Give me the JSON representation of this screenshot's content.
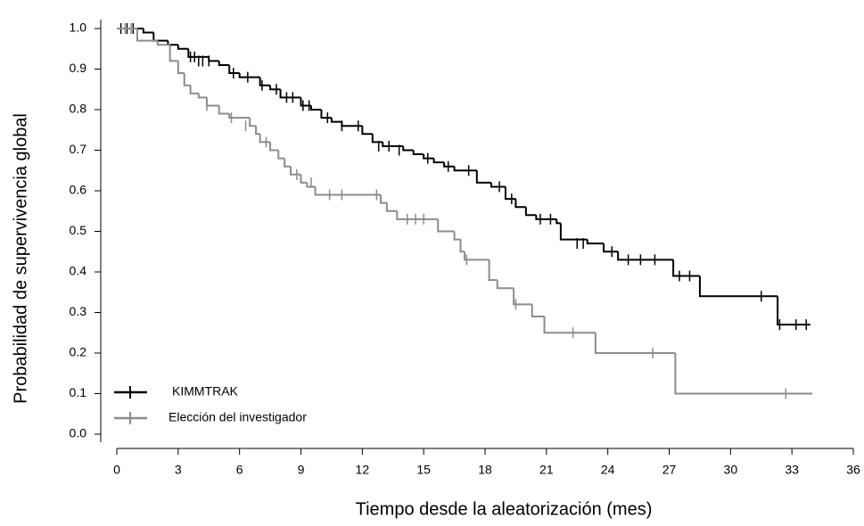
{
  "chart_data": {
    "type": "step",
    "xlabel": "Tiempo desde la aleatorización (mes)",
    "ylabel": "Probabilidad de supervivencia global",
    "xlim": [
      0,
      36
    ],
    "ylim": [
      0,
      1
    ],
    "xticks": [
      0,
      3,
      6,
      9,
      12,
      15,
      18,
      21,
      24,
      27,
      30,
      33,
      36
    ],
    "yticks": [
      {
        "value": 0,
        "label": "0.0"
      },
      0.1,
      0.2,
      0.3,
      0.4,
      0.5,
      0.6,
      0.7,
      0.8,
      0.9,
      {
        "value": 1,
        "label": "1.0"
      }
    ],
    "legend": "lower left",
    "series": [
      {
        "name": "KIMMTRAK",
        "color": "#000000",
        "x": [
          0,
          1.3,
          1.8,
          2.5,
          3,
          3.5,
          4.5,
          5,
          5.5,
          6,
          7,
          7.5,
          8,
          9,
          9.5,
          10,
          10.5,
          11,
          12,
          12.5,
          13,
          14,
          14.5,
          15,
          15.5,
          16,
          16.5,
          17.6,
          18.3,
          19,
          19.5,
          20,
          20.5,
          21.5,
          21.7,
          23,
          23.8,
          24.5,
          27.2,
          28.5,
          32.3,
          33.9
        ],
        "values": [
          1.0,
          0.99,
          0.97,
          0.96,
          0.95,
          0.93,
          0.92,
          0.91,
          0.89,
          0.88,
          0.86,
          0.85,
          0.83,
          0.81,
          0.8,
          0.78,
          0.77,
          0.76,
          0.74,
          0.72,
          0.71,
          0.7,
          0.69,
          0.68,
          0.67,
          0.66,
          0.65,
          0.62,
          0.61,
          0.58,
          0.56,
          0.54,
          0.53,
          0.52,
          0.48,
          0.47,
          0.45,
          0.43,
          0.39,
          0.34,
          0.27,
          0.27
        ],
        "censored_x": [
          0.2,
          0.5,
          0.8,
          3.6,
          3.8,
          4.0,
          4.2,
          4.5,
          5.7,
          6.4,
          7.1,
          7.8,
          8.3,
          8.6,
          9.1,
          9.4,
          10.3,
          11,
          11.8,
          12.8,
          13.3,
          13.8,
          15.2,
          16.2,
          17.2,
          18.7,
          19.3,
          20.7,
          21.2,
          22.5,
          22.8,
          24.2,
          25,
          25.6,
          26.3,
          27.5,
          28,
          31.5,
          32.4,
          33.2,
          33.7
        ],
        "censored_y": [
          1.0,
          1.0,
          1.0,
          0.93,
          0.93,
          0.92,
          0.92,
          0.92,
          0.89,
          0.88,
          0.86,
          0.85,
          0.83,
          0.83,
          0.81,
          0.81,
          0.78,
          0.76,
          0.76,
          0.71,
          0.71,
          0.7,
          0.68,
          0.66,
          0.65,
          0.61,
          0.58,
          0.53,
          0.53,
          0.47,
          0.47,
          0.45,
          0.43,
          0.43,
          0.43,
          0.39,
          0.39,
          0.34,
          0.27,
          0.27,
          0.27
        ]
      },
      {
        "name": "Elección del investigador",
        "color": "#8c8c8c",
        "x": [
          0,
          1,
          2,
          2.6,
          3,
          3.3,
          3.6,
          4,
          4.4,
          5,
          5.5,
          6.5,
          6.8,
          7,
          7.5,
          7.9,
          8.2,
          8.5,
          9,
          9.3,
          9.7,
          12.9,
          13.2,
          13.7,
          15.7,
          16.5,
          16.8,
          17,
          18.2,
          18.6,
          19.4,
          20.3,
          20.9,
          23.4,
          27.3,
          34
        ],
        "values": [
          1.0,
          0.97,
          0.96,
          0.92,
          0.89,
          0.86,
          0.84,
          0.83,
          0.81,
          0.79,
          0.78,
          0.76,
          0.74,
          0.72,
          0.7,
          0.68,
          0.66,
          0.64,
          0.62,
          0.61,
          0.59,
          0.57,
          0.55,
          0.53,
          0.5,
          0.48,
          0.45,
          0.43,
          0.38,
          0.36,
          0.32,
          0.29,
          0.25,
          0.2,
          0.1,
          0.1
        ],
        "censored_x": [
          0.4,
          0.7,
          4.4,
          5.6,
          6.3,
          7.3,
          8.8,
          9.5,
          10.4,
          11,
          12.7,
          14.2,
          14.6,
          15.0,
          17.1,
          19.5,
          22.3,
          26.2,
          32.7
        ],
        "censored_y": [
          1.0,
          1.0,
          0.81,
          0.78,
          0.76,
          0.72,
          0.64,
          0.62,
          0.59,
          0.59,
          0.59,
          0.53,
          0.53,
          0.53,
          0.43,
          0.32,
          0.25,
          0.2,
          0.1
        ]
      }
    ]
  }
}
